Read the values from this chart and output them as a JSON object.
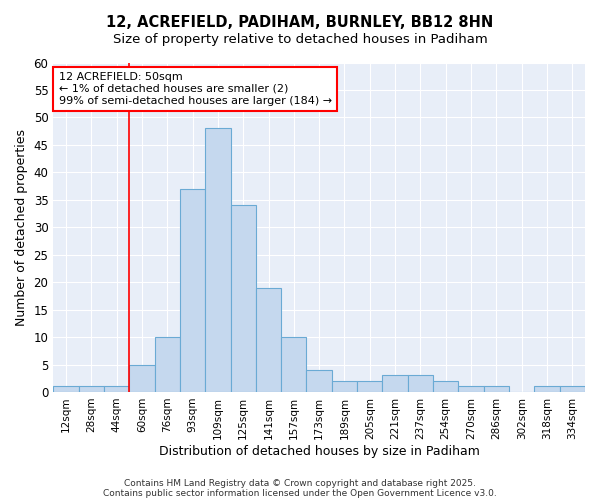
{
  "title": "12, ACREFIELD, PADIHAM, BURNLEY, BB12 8HN",
  "subtitle": "Size of property relative to detached houses in Padiham",
  "xlabel": "Distribution of detached houses by size in Padiham",
  "ylabel": "Number of detached properties",
  "categories": [
    "12sqm",
    "28sqm",
    "44sqm",
    "60sqm",
    "76sqm",
    "93sqm",
    "109sqm",
    "125sqm",
    "141sqm",
    "157sqm",
    "173sqm",
    "189sqm",
    "205sqm",
    "221sqm",
    "237sqm",
    "254sqm",
    "270sqm",
    "286sqm",
    "302sqm",
    "318sqm",
    "334sqm"
  ],
  "values": [
    1,
    1,
    1,
    5,
    10,
    37,
    48,
    34,
    19,
    10,
    4,
    2,
    2,
    3,
    3,
    2,
    1,
    1,
    0,
    1,
    1
  ],
  "bar_color": "#c5d8ee",
  "bar_edge_color": "#6aaad4",
  "red_line_x": 2.5,
  "annotation_box_text": "12 ACREFIELD: 50sqm\n← 1% of detached houses are smaller (2)\n99% of semi-detached houses are larger (184) →",
  "ylim": [
    0,
    60
  ],
  "yticks": [
    0,
    5,
    10,
    15,
    20,
    25,
    30,
    35,
    40,
    45,
    50,
    55,
    60
  ],
  "background_color": "#ffffff",
  "plot_bg_color": "#e8eef8",
  "grid_color": "#ffffff",
  "footer_line1": "Contains HM Land Registry data © Crown copyright and database right 2025.",
  "footer_line2": "Contains public sector information licensed under the Open Government Licence v3.0."
}
